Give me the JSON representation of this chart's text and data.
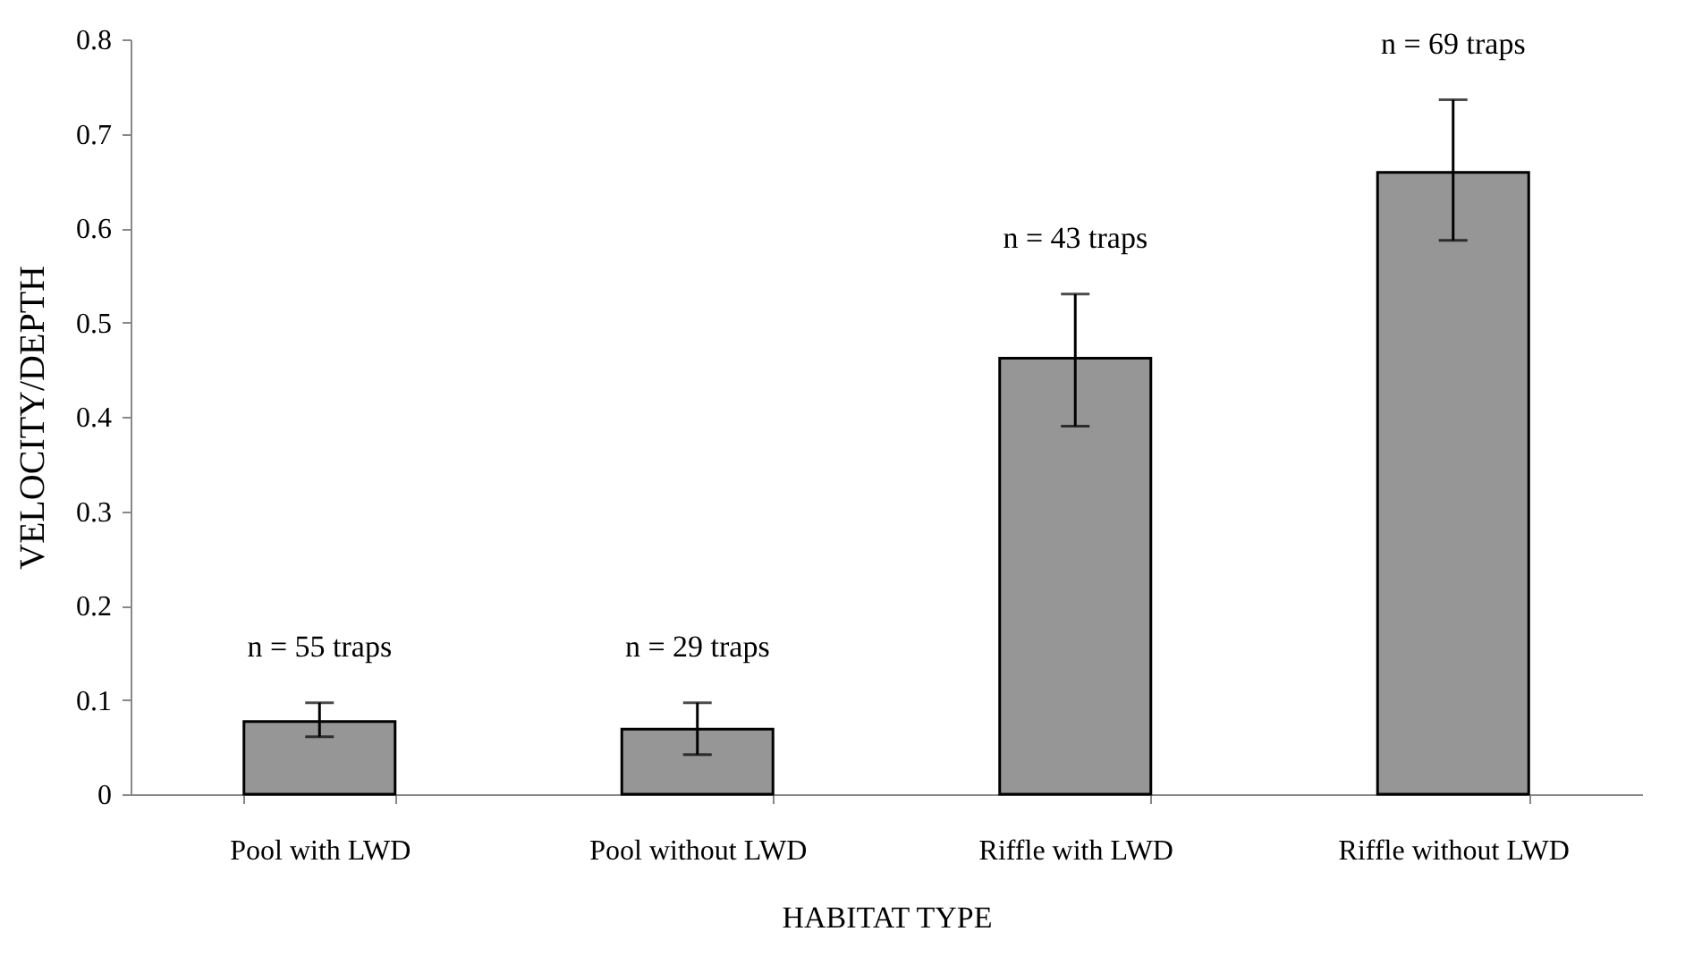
{
  "chart_data": {
    "type": "bar",
    "xlabel": "HABITAT TYPE",
    "ylabel": "VELOCITY/DEPTH",
    "categories": [
      "Pool with LWD",
      "Pool without LWD",
      "Riffle with LWD",
      "Riffle without LWD"
    ],
    "values": [
      0.077,
      0.069,
      0.462,
      0.659
    ],
    "errors": [
      [
        0.061,
        0.097
      ],
      [
        0.042,
        0.097
      ],
      [
        0.39,
        0.53
      ],
      [
        0.587,
        0.736
      ]
    ],
    "color": "#969696",
    "ylim": [
      0,
      0.8
    ],
    "yticks": [
      0,
      0.1,
      0.2,
      0.3,
      0.4,
      0.5,
      0.6,
      0.7,
      0.8
    ],
    "grid": false,
    "annotations": [
      "n = 55 traps",
      "n = 29 traps",
      "n = 43 traps",
      "n = 69 traps"
    ]
  }
}
